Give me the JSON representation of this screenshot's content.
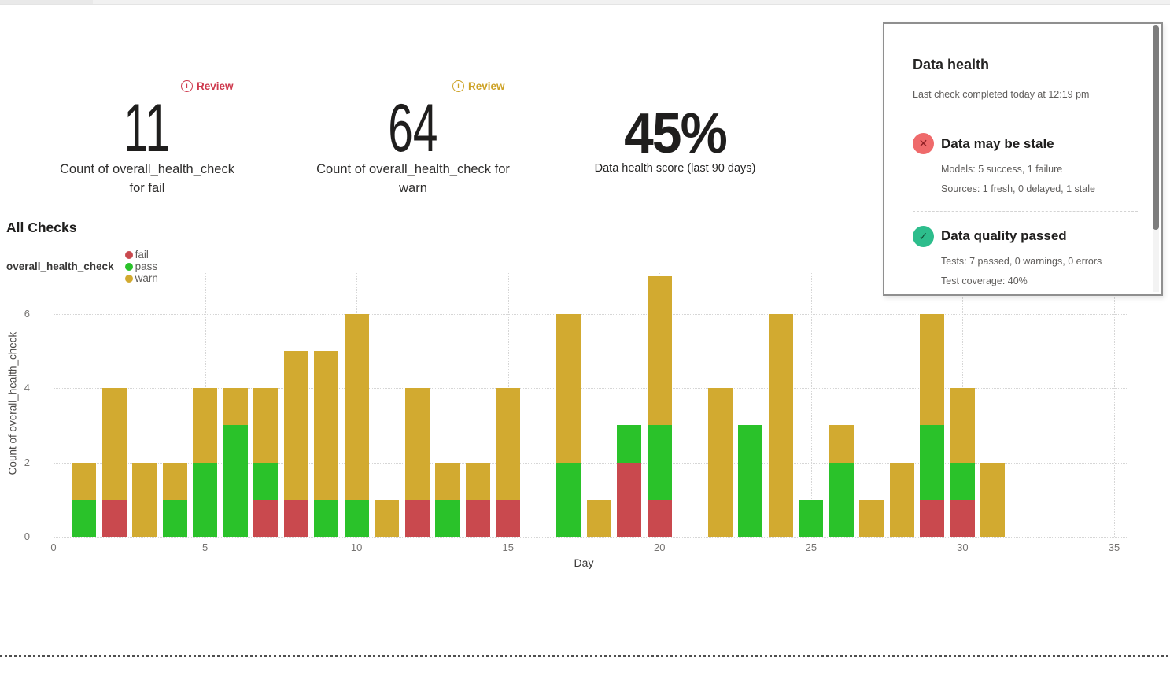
{
  "metrics": [
    {
      "review_label": "Review",
      "review_color": "#ce3a4e",
      "value": "11",
      "caption_line1": "Count of overall_health_check",
      "caption_line2": "for fail"
    },
    {
      "review_label": "Review",
      "review_color": "#cda226",
      "value": "64",
      "caption_line1": "Count of overall_health_check for",
      "caption_line2": "warn"
    },
    {
      "value": "45%",
      "caption": "Data health score (last 90 days)"
    }
  ],
  "health_panel": {
    "title": "Data health",
    "subtitle": "Last check completed today at 12:19 pm",
    "sections": [
      {
        "status": "fail",
        "icon": "x-circle-icon",
        "icon_glyph": "✕",
        "icon_bg": "#ef6a6b",
        "icon_fg": "#8e1f24",
        "title": "Data may be stale",
        "lines": [
          "Models: 5 success, 1 failure",
          "Sources: 1 fresh, 0 delayed, 1 stale"
        ]
      },
      {
        "status": "pass",
        "icon": "check-circle-icon",
        "icon_glyph": "✓",
        "icon_bg": "#2dbd8c",
        "icon_fg": "#114d35",
        "title": "Data quality passed",
        "lines": [
          "Tests: 7 passed, 0 warnings, 0 errors",
          "Test coverage: 40%"
        ]
      }
    ]
  },
  "chart_data": {
    "type": "bar",
    "stacked": true,
    "title": "All Checks",
    "series_group_label": "overall_health_check",
    "xlabel": "Day",
    "ylabel": "Count of overall_health_check",
    "x_ticks": [
      0,
      5,
      10,
      15,
      20,
      25,
      30,
      35
    ],
    "y_ticks": [
      0,
      2,
      4,
      6
    ],
    "xlim": [
      0,
      35.8
    ],
    "ylim": [
      0,
      7.1
    ],
    "grid": "dotted",
    "legend_position": "top-left",
    "legend": [
      {
        "name": "fail",
        "color": "#c9494e"
      },
      {
        "name": "pass",
        "color": "#2ac22a"
      },
      {
        "name": "warn",
        "color": "#d2aa30"
      }
    ],
    "days": [
      {
        "day": 1,
        "fail": 0,
        "pass": 1,
        "warn": 1
      },
      {
        "day": 2,
        "fail": 1,
        "pass": 0,
        "warn": 3
      },
      {
        "day": 3,
        "fail": 0,
        "pass": 0,
        "warn": 2
      },
      {
        "day": 4,
        "fail": 0,
        "pass": 1,
        "warn": 1
      },
      {
        "day": 5,
        "fail": 0,
        "pass": 2,
        "warn": 2
      },
      {
        "day": 6,
        "fail": 0,
        "pass": 3,
        "warn": 1
      },
      {
        "day": 7,
        "fail": 1,
        "pass": 1,
        "warn": 2
      },
      {
        "day": 8,
        "fail": 1,
        "pass": 0,
        "warn": 4
      },
      {
        "day": 9,
        "fail": 0,
        "pass": 1,
        "warn": 4
      },
      {
        "day": 10,
        "fail": 0,
        "pass": 1,
        "warn": 5
      },
      {
        "day": 11,
        "fail": 0,
        "pass": 0,
        "warn": 1
      },
      {
        "day": 12,
        "fail": 1,
        "pass": 0,
        "warn": 3
      },
      {
        "day": 13,
        "fail": 0,
        "pass": 1,
        "warn": 1
      },
      {
        "day": 14,
        "fail": 1,
        "pass": 0,
        "warn": 1
      },
      {
        "day": 15,
        "fail": 1,
        "pass": 0,
        "warn": 3
      },
      {
        "day": 17,
        "fail": 0,
        "pass": 2,
        "warn": 4
      },
      {
        "day": 18,
        "fail": 0,
        "pass": 0,
        "warn": 1
      },
      {
        "day": 19,
        "fail": 2,
        "pass": 1,
        "warn": 0
      },
      {
        "day": 20,
        "fail": 1,
        "pass": 2,
        "warn": 4
      },
      {
        "day": 22,
        "fail": 0,
        "pass": 0,
        "warn": 4
      },
      {
        "day": 23,
        "fail": 0,
        "pass": 3,
        "warn": 0
      },
      {
        "day": 24,
        "fail": 0,
        "pass": 0,
        "warn": 6
      },
      {
        "day": 25,
        "fail": 0,
        "pass": 1,
        "warn": 0
      },
      {
        "day": 26,
        "fail": 0,
        "pass": 2,
        "warn": 1
      },
      {
        "day": 27,
        "fail": 0,
        "pass": 0,
        "warn": 1
      },
      {
        "day": 28,
        "fail": 0,
        "pass": 0,
        "warn": 2
      },
      {
        "day": 29,
        "fail": 1,
        "pass": 2,
        "warn": 3
      },
      {
        "day": 30,
        "fail": 1,
        "pass": 1,
        "warn": 2
      },
      {
        "day": 31,
        "fail": 0,
        "pass": 0,
        "warn": 2
      }
    ]
  }
}
